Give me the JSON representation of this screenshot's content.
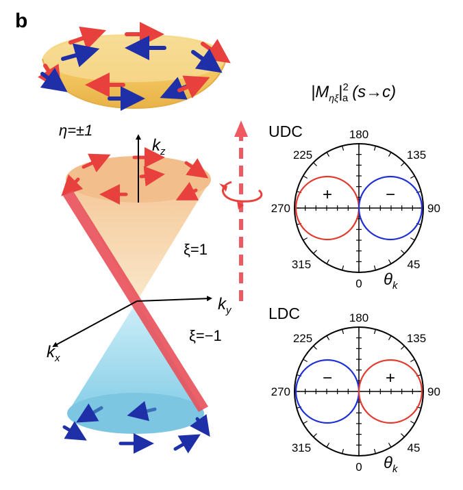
{
  "panel_label": "b",
  "title": {
    "main": "|M",
    "sub": "ηξ",
    "sup": "2",
    "sub2": "a",
    "tail": "(s→c)"
  },
  "left": {
    "eta": "η=±1",
    "kz": "k",
    "kz_sub": "z",
    "ky": "k",
    "ky_sub": "y",
    "kx": "k",
    "kx_sub": "x",
    "xi_pos": "ξ=1",
    "xi_neg": "ξ=−1"
  },
  "polars": [
    {
      "name": "UDC",
      "angles": {
        "top": "180",
        "top_left": "225",
        "top_right": "135",
        "left": "270",
        "right": "90",
        "bottom_left": "315",
        "bottom_right": "45",
        "bottom": "0"
      },
      "left_sign": "+",
      "right_sign": "−",
      "left_lobe_color": "#e23a2e",
      "right_lobe_color": "#1f2fd6",
      "theta": "θ",
      "theta_sub": "k"
    },
    {
      "name": "LDC",
      "angles": {
        "top": "180",
        "top_left": "225",
        "top_right": "135",
        "left": "270",
        "right": "90",
        "bottom_left": "315",
        "bottom_right": "45",
        "bottom": "0"
      },
      "left_sign": "−",
      "right_sign": "+",
      "left_lobe_color": "#1f2fd6",
      "right_lobe_color": "#e23a2e",
      "theta": "θ",
      "theta_sub": "k"
    }
  ],
  "colors": {
    "red_arrow": "#e8413d",
    "blue_arrow": "#1f2fa8",
    "upper_cone": "#f2c98a",
    "lower_cone": "#8fd3ea",
    "bowl": "#f3c862",
    "bar": "#e8505a"
  }
}
